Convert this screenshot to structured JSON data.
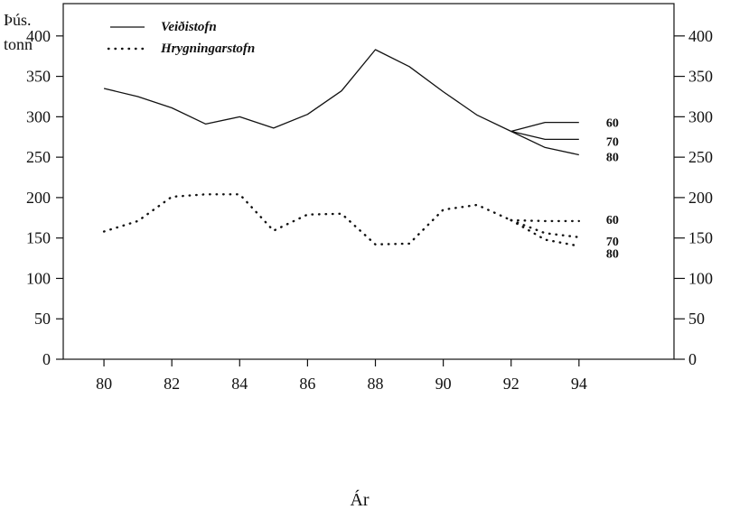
{
  "chart_data": {
    "type": "line",
    "title": "",
    "xlabel": "Ár",
    "ylabel_lines": [
      "Þús.",
      "tonn"
    ],
    "xlim": [
      78.8,
      96.8
    ],
    "ylim": [
      0,
      440
    ],
    "x_ticks": [
      80,
      82,
      84,
      86,
      88,
      90,
      92,
      94
    ],
    "x_tick_labels": [
      "80",
      "82",
      "84",
      "86",
      "88",
      "90",
      "92",
      "94"
    ],
    "y_ticks": [
      0,
      50,
      100,
      150,
      200,
      250,
      300,
      350,
      400
    ],
    "y_tick_labels": [
      "0",
      "50",
      "100",
      "150",
      "200",
      "250",
      "300",
      "350",
      "400"
    ],
    "right_y_tick_labels": [
      "0",
      "50",
      "100",
      "150",
      "200",
      "250",
      "300",
      "350",
      "400"
    ],
    "grid": false,
    "legend_position": "top-left",
    "series": [
      {
        "name": "Veiðistofn",
        "style": "solid",
        "x": [
          80,
          81,
          82,
          83,
          84,
          85,
          86,
          87,
          88,
          89,
          90,
          91,
          92
        ],
        "y": [
          335,
          325,
          311,
          291,
          300,
          286,
          303,
          332,
          383,
          362,
          331,
          302,
          282
        ]
      },
      {
        "name": "Hrygningarstofn",
        "style": "dotted",
        "x": [
          80,
          81,
          82,
          83,
          84,
          85,
          86,
          87,
          88,
          89,
          90,
          91,
          92
        ],
        "y": [
          158,
          171,
          201,
          204,
          204,
          159,
          179,
          180,
          142,
          143,
          185,
          191,
          172
        ]
      }
    ],
    "projections": [
      {
        "label": "60",
        "style": "solid",
        "x": [
          92,
          93,
          94
        ],
        "y": [
          282,
          293,
          293
        ]
      },
      {
        "label": "70",
        "style": "solid",
        "x": [
          92,
          93,
          94
        ],
        "y": [
          282,
          272,
          272
        ]
      },
      {
        "label": "80",
        "style": "solid",
        "x": [
          92,
          93,
          94
        ],
        "y": [
          282,
          262,
          253
        ]
      },
      {
        "label": "60",
        "style": "dotted",
        "x": [
          92,
          93,
          94
        ],
        "y": [
          172,
          171,
          171
        ]
      },
      {
        "label": "70",
        "style": "dotted",
        "x": [
          92,
          93,
          94
        ],
        "y": [
          172,
          156,
          151
        ]
      },
      {
        "label": "80",
        "style": "dotted",
        "x": [
          92,
          93,
          94
        ],
        "y": [
          172,
          148,
          140
        ]
      }
    ]
  }
}
